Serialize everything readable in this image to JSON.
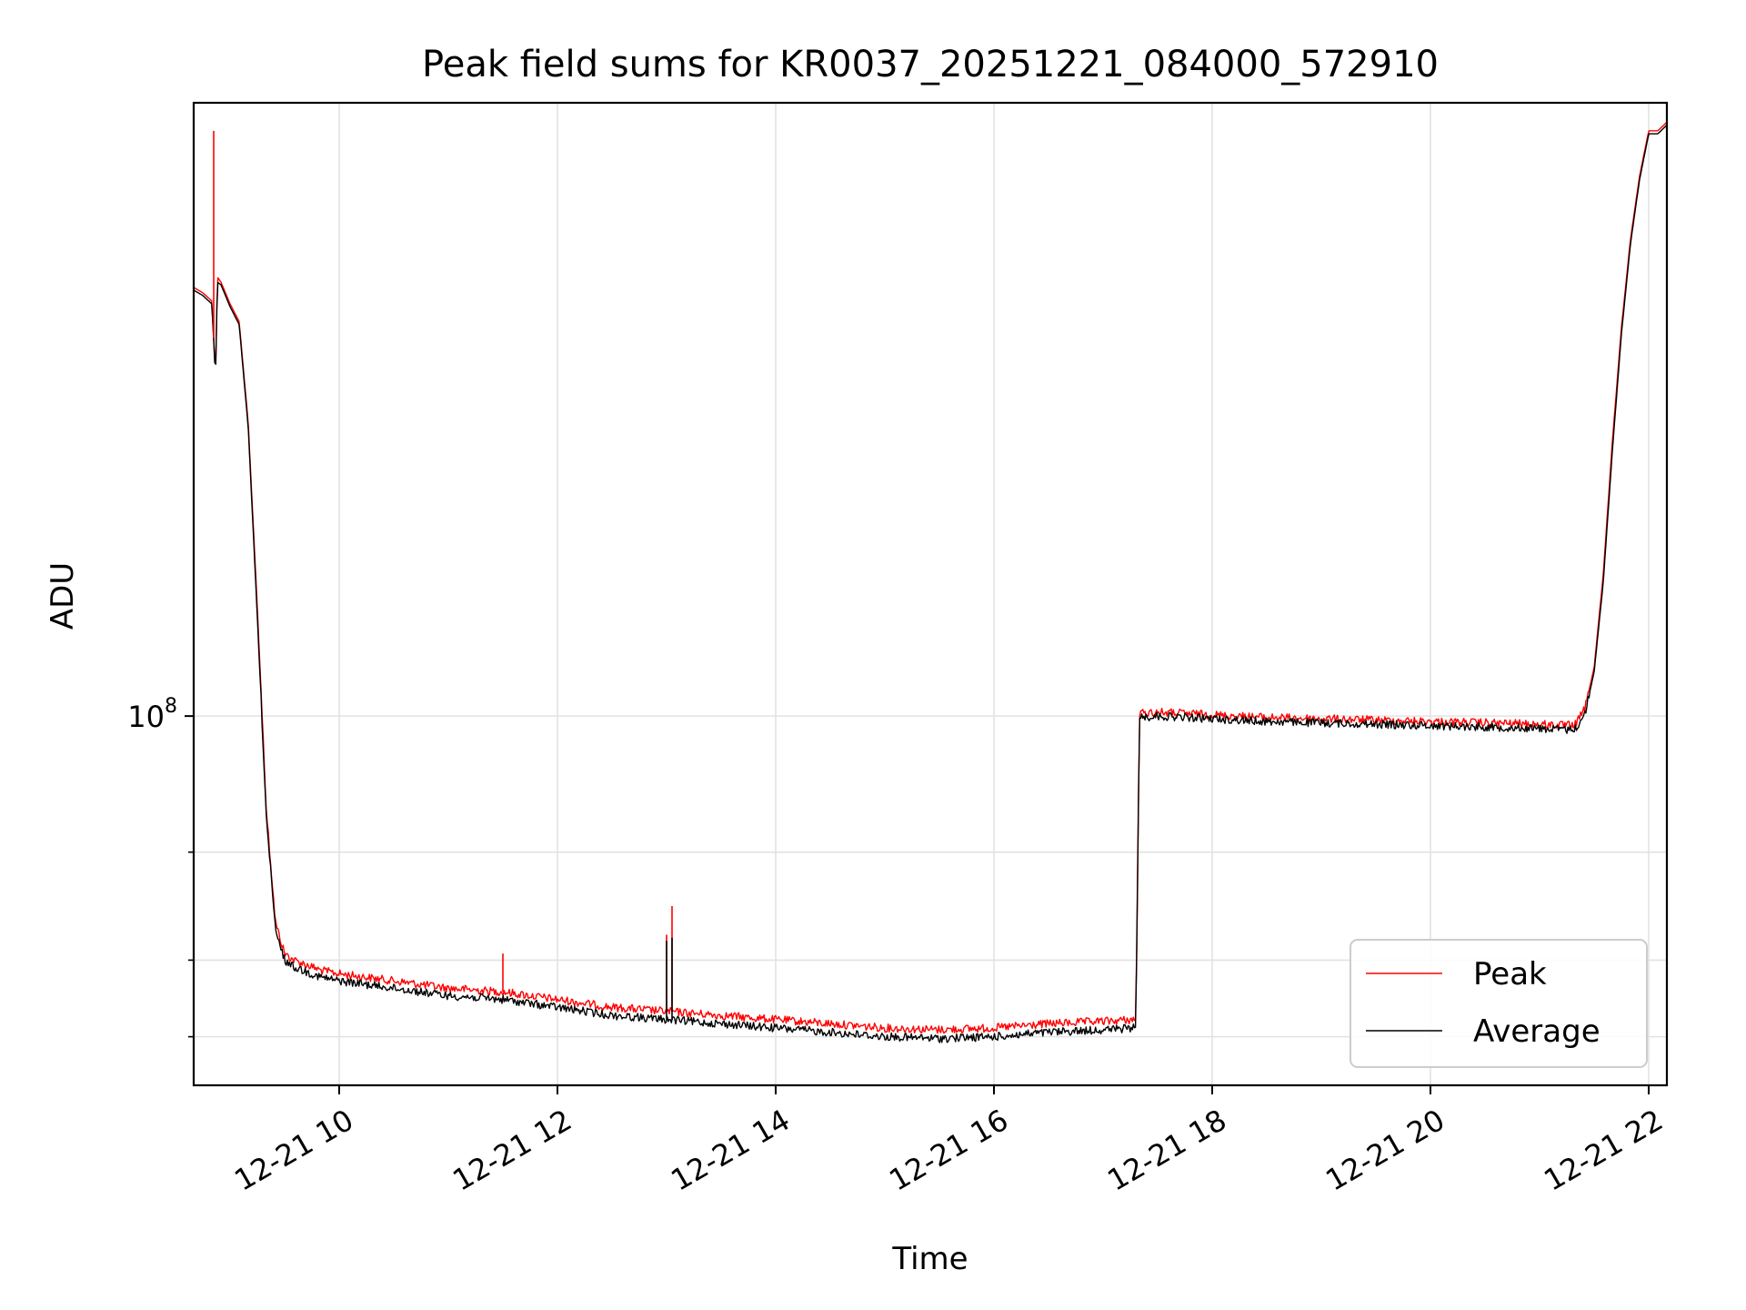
{
  "chart_data": {
    "type": "line",
    "title": "Peak field sums for KR0037_20251221_084000_572910",
    "xlabel": "Time",
    "ylabel": "ADU",
    "yscale": "log",
    "xlim": [
      "2025-12-21 08:40",
      "2025-12-21 22:10"
    ],
    "ylim": [
      25000000,
      1000000000
    ],
    "x_ticks": [
      {
        "value": "2025-12-21 10:00",
        "label": "12-21 10"
      },
      {
        "value": "2025-12-21 12:00",
        "label": "12-21 12"
      },
      {
        "value": "2025-12-21 14:00",
        "label": "12-21 14"
      },
      {
        "value": "2025-12-21 16:00",
        "label": "12-21 16"
      },
      {
        "value": "2025-12-21 18:00",
        "label": "12-21 18"
      },
      {
        "value": "2025-12-21 20:00",
        "label": "12-21 20"
      },
      {
        "value": "2025-12-21 22:00",
        "label": "12-21 22"
      }
    ],
    "y_ticks": [
      {
        "value": 100000000,
        "base": "10",
        "exp": "8"
      }
    ],
    "y_minor_ticks": [
      30000000,
      40000000,
      60000000
    ],
    "grid": true,
    "legend": "bottom-right",
    "x": [
      "2025-12-21 08:40",
      "2025-12-21 08:45",
      "2025-12-21 08:50",
      "2025-12-21 08:52",
      "2025-12-21 08:53",
      "2025-12-21 08:55",
      "2025-12-21 09:00",
      "2025-12-21 09:05",
      "2025-12-21 09:10",
      "2025-12-21 09:15",
      "2025-12-21 09:20",
      "2025-12-21 09:25",
      "2025-12-21 09:30",
      "2025-12-21 09:35",
      "2025-12-21 09:40",
      "2025-12-21 09:45",
      "2025-12-21 09:50",
      "2025-12-21 10:00",
      "2025-12-21 10:30",
      "2025-12-21 11:00",
      "2025-12-21 11:30",
      "2025-12-21 12:00",
      "2025-12-21 12:30",
      "2025-12-21 13:00",
      "2025-12-21 13:30",
      "2025-12-21 14:00",
      "2025-12-21 14:30",
      "2025-12-21 15:00",
      "2025-12-21 15:30",
      "2025-12-21 16:00",
      "2025-12-21 16:30",
      "2025-12-21 17:00",
      "2025-12-21 17:18",
      "2025-12-21 17:20",
      "2025-12-21 17:30",
      "2025-12-21 18:00",
      "2025-12-21 18:30",
      "2025-12-21 19:00",
      "2025-12-21 19:30",
      "2025-12-21 20:00",
      "2025-12-21 20:30",
      "2025-12-21 21:00",
      "2025-12-21 21:15",
      "2025-12-21 21:20",
      "2025-12-21 21:25",
      "2025-12-21 21:30",
      "2025-12-21 21:35",
      "2025-12-21 21:40",
      "2025-12-21 21:45",
      "2025-12-21 21:50",
      "2025-12-21 21:55",
      "2025-12-21 22:00",
      "2025-12-21 22:05",
      "2025-12-21 22:10"
    ],
    "series": [
      {
        "name": "Peak",
        "color": "#ff0000",
        "values": [
          500000000,
          490000000,
          475000000,
          360000000,
          520000000,
          510000000,
          470000000,
          440000000,
          300000000,
          150000000,
          70000000,
          46000000,
          41000000,
          40000000,
          39500000,
          39000000,
          38500000,
          38000000,
          37000000,
          36000000,
          35500000,
          34500000,
          33500000,
          33000000,
          32500000,
          32000000,
          31500000,
          31000000,
          30800000,
          31000000,
          31500000,
          31800000,
          32000000,
          101000000,
          101500000,
          100500000,
          99500000,
          99000000,
          98500000,
          98000000,
          97500000,
          97000000,
          96500000,
          97000000,
          103000000,
          120000000,
          170000000,
          280000000,
          430000000,
          600000000,
          760000000,
          900000000,
          900000000,
          930000000
        ]
      },
      {
        "name": "Average",
        "color": "#000000",
        "values": [
          495000000,
          485000000,
          470000000,
          355000000,
          510000000,
          505000000,
          465000000,
          435000000,
          295000000,
          145000000,
          68000000,
          44500000,
          40000000,
          39000000,
          38500000,
          38000000,
          37500000,
          37000000,
          36000000,
          35000000,
          34500000,
          33500000,
          32500000,
          32000000,
          31500000,
          31000000,
          30500000,
          30000000,
          29800000,
          30000000,
          30500000,
          30800000,
          31000000,
          99500000,
          100000000,
          99000000,
          98000000,
          97500000,
          97000000,
          96500000,
          96000000,
          95500000,
          95000000,
          95500000,
          101000000,
          118000000,
          165000000,
          270000000,
          420000000,
          590000000,
          750000000,
          890000000,
          890000000,
          920000000
        ]
      }
    ],
    "annotations": [
      {
        "series": "Peak",
        "x": "2025-12-21 08:51",
        "value": 900000000
      },
      {
        "series": "Peak",
        "x": "2025-12-21 11:30",
        "value": 41000000
      },
      {
        "series": "Peak",
        "x": "2025-12-21 13:00",
        "value": 44000000
      },
      {
        "series": "Peak",
        "x": "2025-12-21 13:03",
        "value": 49000000
      },
      {
        "series": "Average",
        "x": "2025-12-21 13:00",
        "value": 43000000
      },
      {
        "series": "Average",
        "x": "2025-12-21 13:03",
        "value": 43500000
      }
    ]
  }
}
